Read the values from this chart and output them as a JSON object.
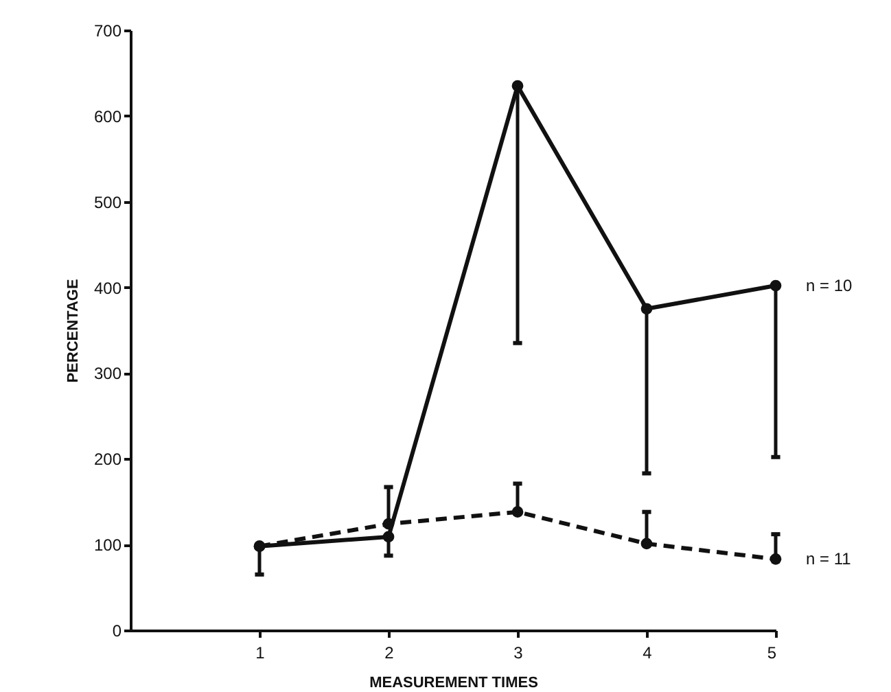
{
  "chart_data": {
    "type": "line",
    "xlabel": "MEASUREMENT TIMES",
    "ylabel": "PERCENTAGE",
    "x": [
      1,
      2,
      3,
      4,
      5
    ],
    "series": [
      {
        "name": "n = 10",
        "color": "#111111",
        "line_style": "solid",
        "values": [
          98,
          109,
          635,
          375,
          402
        ],
        "errors": [
          [
            65,
            98
          ],
          [
            87,
            109
          ],
          [
            335,
            635
          ],
          [
            183,
            375
          ],
          [
            202,
            402
          ]
        ]
      },
      {
        "name": "n = 11",
        "color": "#111111",
        "line_style": "dashed",
        "values": [
          98,
          124,
          138,
          101,
          83
        ],
        "errors": [
          null,
          [
            124,
            167
          ],
          [
            138,
            171
          ],
          [
            101,
            138
          ],
          [
            83,
            112
          ]
        ]
      }
    ],
    "xlim": [
      0,
      5
    ],
    "xticks": [
      1,
      2,
      3,
      4,
      5
    ],
    "ylim": [
      0,
      700
    ],
    "yticks": [
      0,
      100,
      200,
      300,
      400,
      500,
      600,
      700
    ],
    "marker": "circle",
    "grid": false,
    "legend": false
  }
}
